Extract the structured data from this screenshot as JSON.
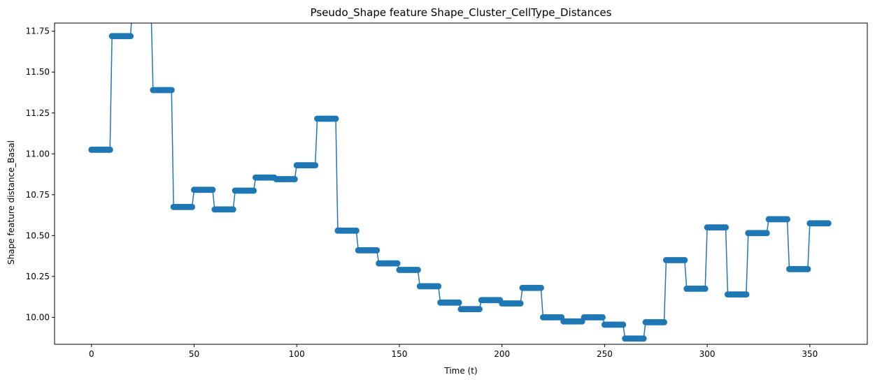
{
  "chart_data": {
    "type": "line",
    "title": "Pseudo_Shape feature Shape_Cluster_CellType_Distances",
    "xlabel": "Time (t)",
    "ylabel": "Shape feature distance_Basal",
    "xlim": [
      -18,
      378
    ],
    "ylim": [
      9.835,
      11.8
    ],
    "xticks": [
      0,
      50,
      100,
      150,
      200,
      250,
      300,
      350
    ],
    "xtick_labels": [
      "0",
      "50",
      "100",
      "150",
      "200",
      "250",
      "300",
      "350"
    ],
    "yticks": [
      10.0,
      10.25,
      10.5,
      10.75,
      11.0,
      11.25,
      11.5,
      11.75
    ],
    "ytick_labels": [
      "10.00",
      "10.25",
      "10.50",
      "10.75",
      "11.00",
      "11.25",
      "11.50",
      "11.75"
    ],
    "grid": false,
    "legend": "none",
    "marker": "circle",
    "color": "#1f77b4",
    "x_step": 1,
    "segment_length": 10,
    "segments": [
      {
        "x_start": 0,
        "x_end": 9,
        "y": 11.025
      },
      {
        "x_start": 10,
        "x_end": 19,
        "y": 11.72
      },
      {
        "x_start": 20,
        "x_end": 29,
        "y": 11.9
      },
      {
        "x_start": 30,
        "x_end": 39,
        "y": 11.39
      },
      {
        "x_start": 40,
        "x_end": 49,
        "y": 10.675
      },
      {
        "x_start": 50,
        "x_end": 59,
        "y": 10.78
      },
      {
        "x_start": 60,
        "x_end": 69,
        "y": 10.66
      },
      {
        "x_start": 70,
        "x_end": 79,
        "y": 10.775
      },
      {
        "x_start": 80,
        "x_end": 89,
        "y": 10.855
      },
      {
        "x_start": 90,
        "x_end": 99,
        "y": 10.845
      },
      {
        "x_start": 100,
        "x_end": 109,
        "y": 10.93
      },
      {
        "x_start": 110,
        "x_end": 119,
        "y": 11.215
      },
      {
        "x_start": 120,
        "x_end": 129,
        "y": 10.53
      },
      {
        "x_start": 130,
        "x_end": 139,
        "y": 10.41
      },
      {
        "x_start": 140,
        "x_end": 149,
        "y": 10.33
      },
      {
        "x_start": 150,
        "x_end": 159,
        "y": 10.29
      },
      {
        "x_start": 160,
        "x_end": 169,
        "y": 10.19
      },
      {
        "x_start": 170,
        "x_end": 179,
        "y": 10.09
      },
      {
        "x_start": 180,
        "x_end": 189,
        "y": 10.05
      },
      {
        "x_start": 190,
        "x_end": 199,
        "y": 10.105
      },
      {
        "x_start": 200,
        "x_end": 209,
        "y": 10.085
      },
      {
        "x_start": 210,
        "x_end": 219,
        "y": 10.18
      },
      {
        "x_start": 220,
        "x_end": 229,
        "y": 10.0
      },
      {
        "x_start": 230,
        "x_end": 239,
        "y": 9.975
      },
      {
        "x_start": 240,
        "x_end": 249,
        "y": 10.0
      },
      {
        "x_start": 250,
        "x_end": 259,
        "y": 9.955
      },
      {
        "x_start": 260,
        "x_end": 269,
        "y": 9.87
      },
      {
        "x_start": 270,
        "x_end": 279,
        "y": 9.97
      },
      {
        "x_start": 280,
        "x_end": 289,
        "y": 10.35
      },
      {
        "x_start": 290,
        "x_end": 299,
        "y": 10.175
      },
      {
        "x_start": 300,
        "x_end": 309,
        "y": 10.55
      },
      {
        "x_start": 310,
        "x_end": 319,
        "y": 10.14
      },
      {
        "x_start": 320,
        "x_end": 329,
        "y": 10.515
      },
      {
        "x_start": 330,
        "x_end": 339,
        "y": 10.6
      },
      {
        "x_start": 340,
        "x_end": 349,
        "y": 10.295
      },
      {
        "x_start": 350,
        "x_end": 359,
        "y": 10.575
      }
    ]
  }
}
